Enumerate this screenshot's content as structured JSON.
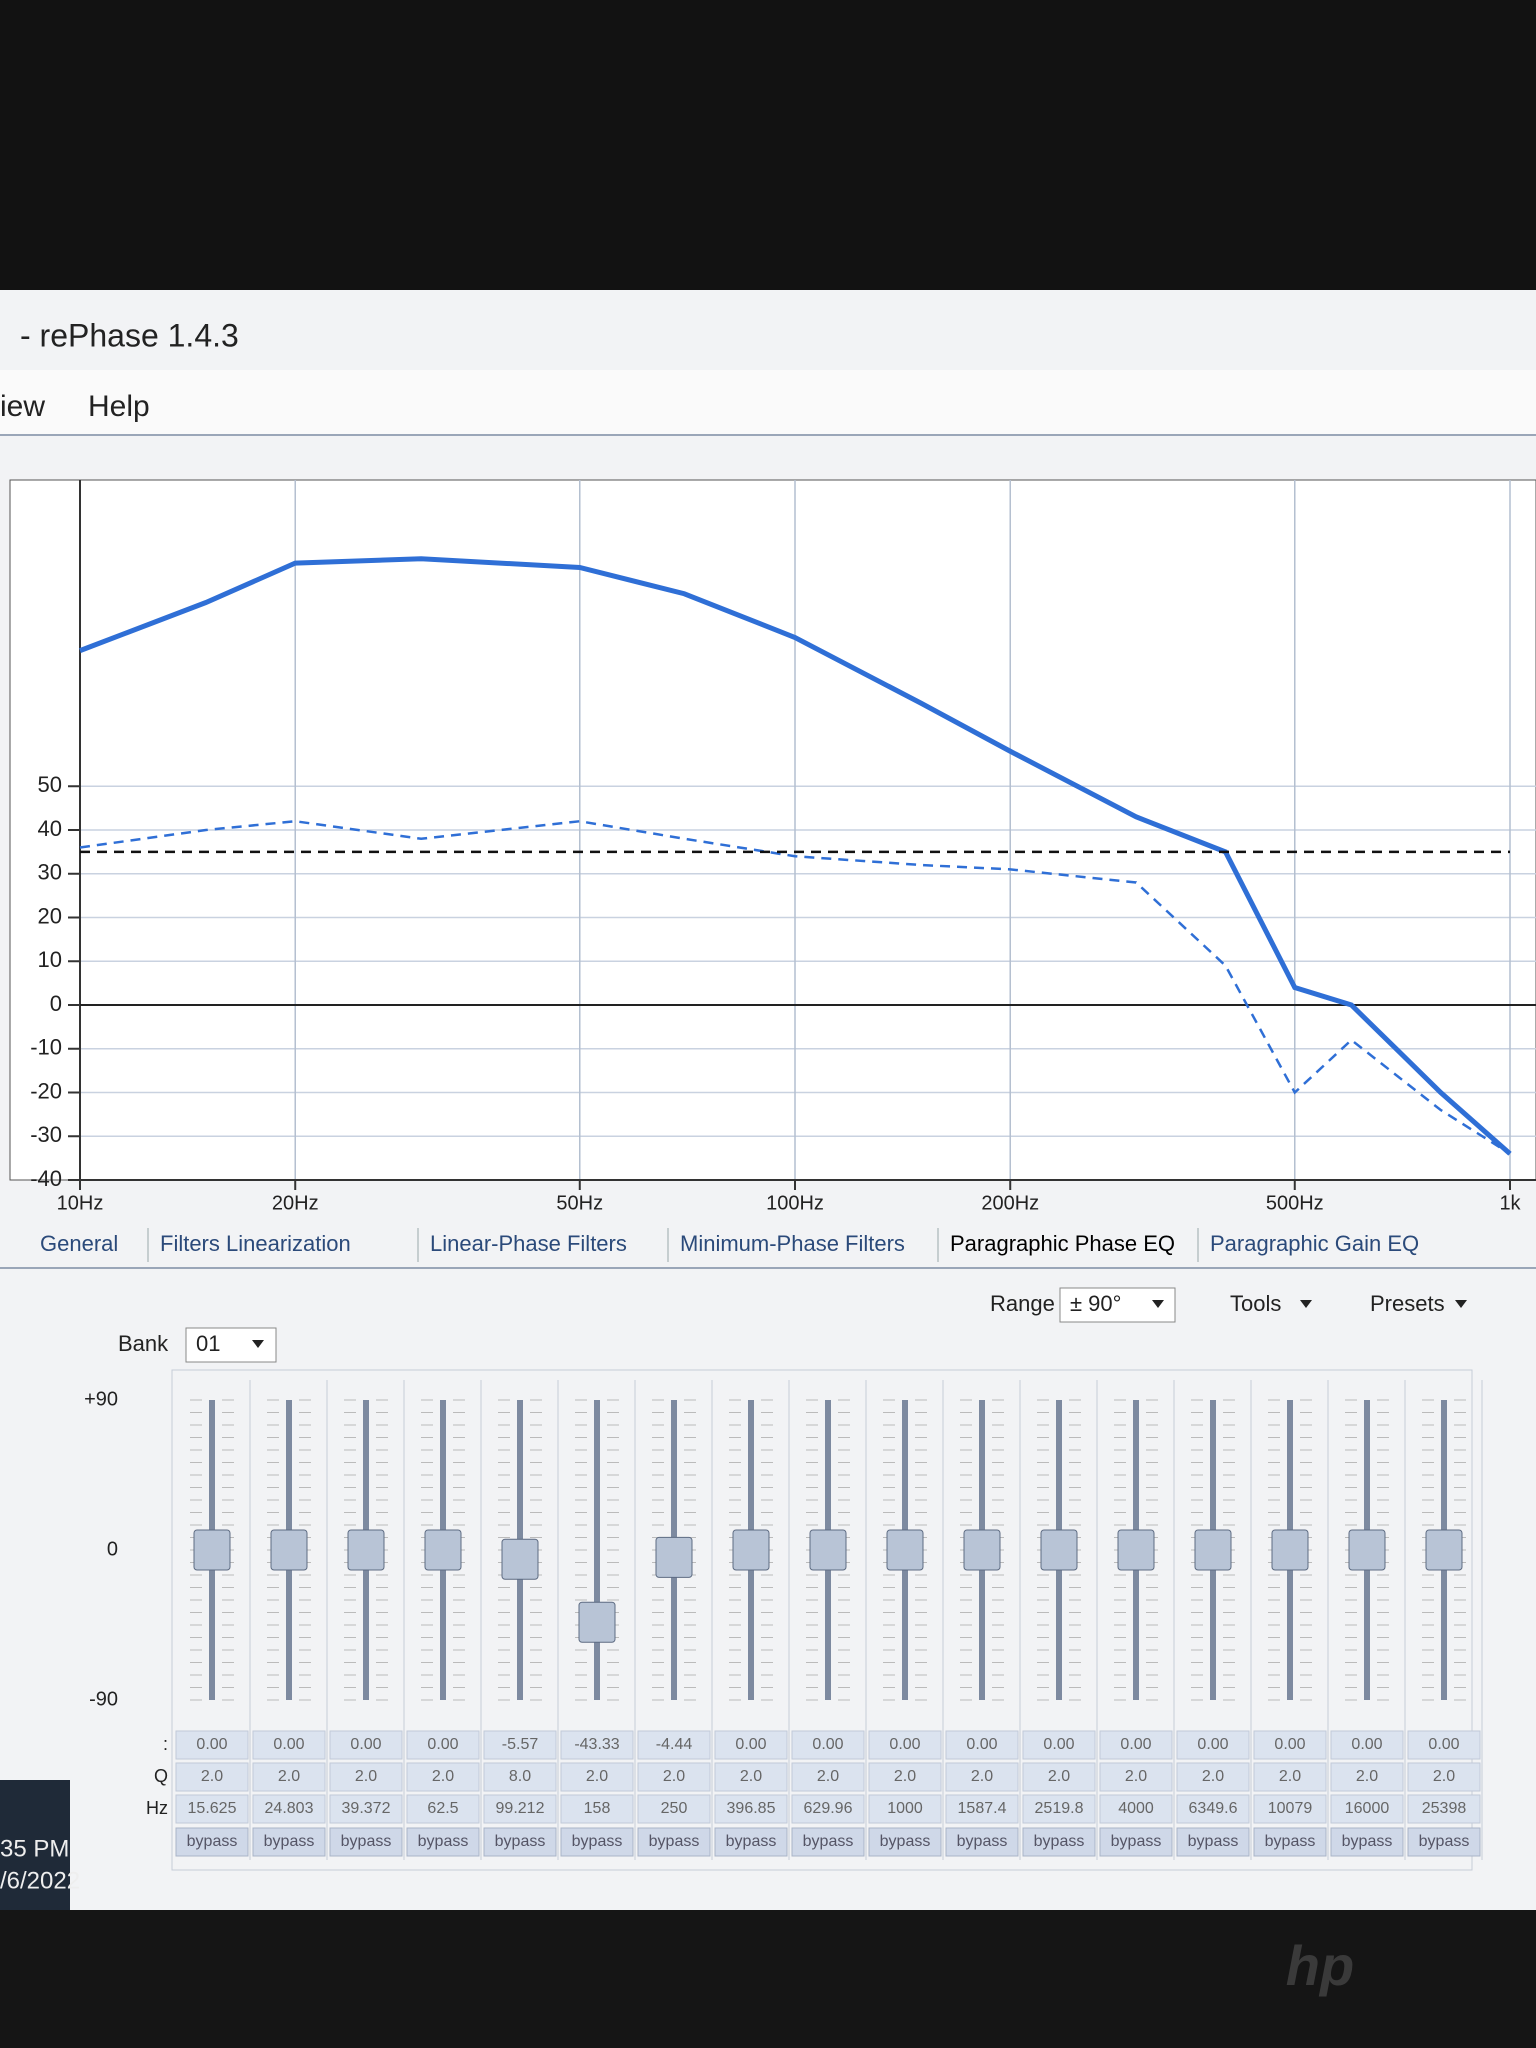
{
  "window": {
    "title": "- rePhase 1.4.3",
    "menu": [
      "iew",
      "Help"
    ]
  },
  "chart_data": {
    "type": "line",
    "x": [
      10,
      15,
      20,
      30,
      50,
      70,
      100,
      150,
      200,
      300,
      400,
      500,
      600,
      800,
      1000
    ],
    "series": [
      {
        "color": "#2f6fd6",
        "dashed": false,
        "values": [
          81,
          92,
          101,
          102,
          100,
          94,
          84,
          69,
          58,
          43,
          35,
          4,
          0,
          -20,
          -34
        ]
      },
      {
        "color": "#2f6fd6",
        "dashed": true,
        "values": [
          36,
          40,
          42,
          38,
          42,
          38,
          34,
          32,
          31,
          28,
          9,
          -20,
          -8,
          -24,
          -34
        ]
      },
      {
        "color": "#111111",
        "dashed": true,
        "values": [
          35,
          35,
          35,
          35,
          35,
          35,
          35,
          35,
          35,
          35,
          35,
          35,
          35,
          35,
          35
        ]
      }
    ],
    "log_x": true,
    "xlim": [
      10,
      1000
    ],
    "xticks": [
      {
        "value": 10,
        "label": "10Hz"
      },
      {
        "value": 20,
        "label": "20Hz"
      },
      {
        "value": 50,
        "label": "50Hz"
      },
      {
        "value": 100,
        "label": "100Hz"
      },
      {
        "value": 200,
        "label": "200Hz"
      },
      {
        "value": 500,
        "label": "500Hz"
      },
      {
        "value": 1000,
        "label": "1k"
      }
    ],
    "ylim": [
      -40,
      120
    ],
    "yticks": [
      -40,
      -30,
      -20,
      -10,
      0,
      10,
      20,
      30,
      40,
      50
    ],
    "grid": true
  },
  "tabs": [
    "General",
    "Filters Linearization",
    "Linear-Phase Filters",
    "Minimum-Phase Filters",
    "Paragraphic Phase EQ",
    "Paragraphic Gain EQ"
  ],
  "eq": {
    "range_label": "Range",
    "range": "± 90°",
    "tools": "Tools",
    "presets": "Presets",
    "bank_label": "Bank",
    "bank": "01",
    "scale": [
      "+90",
      "0",
      "-90"
    ],
    "row_labels": [
      ":",
      "Q",
      "Hz"
    ],
    "bands": [
      {
        "gain": "0.00",
        "q": "2.0",
        "hz": "15.625",
        "state": "bypass"
      },
      {
        "gain": "0.00",
        "q": "2.0",
        "hz": "24.803",
        "state": "bypass"
      },
      {
        "gain": "0.00",
        "q": "2.0",
        "hz": "39.372",
        "state": "bypass"
      },
      {
        "gain": "0.00",
        "q": "2.0",
        "hz": "62.5",
        "state": "bypass"
      },
      {
        "gain": "-5.57",
        "q": "8.0",
        "hz": "99.212",
        "state": "bypass"
      },
      {
        "gain": "-43.33",
        "q": "2.0",
        "hz": "158",
        "state": "bypass"
      },
      {
        "gain": "-4.44",
        "q": "2.0",
        "hz": "250",
        "state": "bypass"
      },
      {
        "gain": "0.00",
        "q": "2.0",
        "hz": "396.85",
        "state": "bypass"
      },
      {
        "gain": "0.00",
        "q": "2.0",
        "hz": "629.96",
        "state": "bypass"
      },
      {
        "gain": "0.00",
        "q": "2.0",
        "hz": "1000",
        "state": "bypass"
      },
      {
        "gain": "0.00",
        "q": "2.0",
        "hz": "1587.4",
        "state": "bypass"
      },
      {
        "gain": "0.00",
        "q": "2.0",
        "hz": "2519.8",
        "state": "bypass"
      },
      {
        "gain": "0.00",
        "q": "2.0",
        "hz": "4000",
        "state": "bypass"
      },
      {
        "gain": "0.00",
        "q": "2.0",
        "hz": "6349.6",
        "state": "bypass"
      },
      {
        "gain": "0.00",
        "q": "2.0",
        "hz": "10079",
        "state": "bypass"
      },
      {
        "gain": "0.00",
        "q": "2.0",
        "hz": "16000",
        "state": "bypass"
      },
      {
        "gain": "0.00",
        "q": "2.0",
        "hz": "25398",
        "state": "bypass"
      }
    ]
  },
  "taskbar": {
    "time": "35 PM",
    "date": "/6/2022"
  },
  "device": {
    "logo": "hp"
  }
}
